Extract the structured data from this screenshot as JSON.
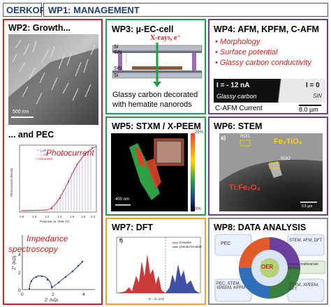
{
  "header": {
    "org": "OERKOP",
    "wp1": "WP1: MANAGEMENT"
  },
  "wp2": {
    "title": "WP2: Growth...",
    "scale_bar": "500 nm",
    "pec_title": "... and PEC",
    "photocurrent_label": "Photocurrent",
    "photocurrent_plot": {
      "xlabel": "Potential vs. RHE (V)",
      "ylabel": "Photocurrent density (mA/cm²)",
      "x_ticks": [
        "0.8",
        "1.0",
        "1.2",
        "1.4",
        "1.6",
        "1.8",
        "2.0"
      ],
      "legend": [
        "j_ph",
        "j_dark",
        "calculated fit"
      ]
    },
    "impedance_label_1": "Impedance",
    "impedance_label_2": "spectroscopy",
    "impedance_plot": {
      "xlabel": "Z' (kΩ)",
      "ylabel": "Z'' (kΩ)",
      "x_ticks": [
        "0",
        "2",
        "4"
      ],
      "y_ticks": [
        "0",
        "2",
        "4"
      ]
    }
  },
  "wp3": {
    "title": "WP3: µ-EC-cell",
    "xray_label": "X-rays, e⁻",
    "layer_si_top": "Si",
    "layer_sin_top": "SiN",
    "layer_sin_bottom": "SiN",
    "layer_si_bottom": "Si",
    "caption_1": "Glassy carbon decorated",
    "caption_2": "with hematite nanorods"
  },
  "wp4": {
    "title": "WP4: AFM, KPFM, C-AFM",
    "bullets": [
      "Morphology",
      "Surface potential",
      "Glassy carbon conductivity"
    ],
    "current_left": "I = - 12 nA",
    "current_right": "I = 0",
    "glassy_label": "Glassy carbon",
    "sin_label": "SiN",
    "caption": "C-AFM Current",
    "scale": "8.0 µm"
  },
  "wp5": {
    "title": "WP5: STXM / X-PEEM",
    "colorbar_top": "25%",
    "colorbar_bottom": "0%",
    "scale": "400 nm"
  },
  "wp6": {
    "title": "WP6: STEM",
    "panel_label": "a)",
    "roi1": "ROI1",
    "roi2": "ROI2",
    "compound_top": "Fe₂TiO₅",
    "compound_bottom": "Ti:Fe₂O₃",
    "scale": "0.5 µm"
  },
  "wp7": {
    "title": "WP7: DFT",
    "panel_label": "f)",
    "legend": [
      "brownite",
      "pseudo-brookite"
    ],
    "xlabel": "E − Eₓ (eV)"
  },
  "wp8": {
    "title": "WP8: DATA ANALYSIS",
    "center": "OER",
    "pec_label": "PEC",
    "top_right": "STEM, AFM, DFT",
    "middle_right": "scaling, multivariate analysis",
    "bottom_left": "PEC, STEM, XPEEM, KPFM",
    "bottom_right": "STXM, XPEEM, DFT"
  },
  "colors": {
    "red": "#d32026",
    "green": "#1e9f46",
    "violet": "#6a3d8f",
    "orange": "#f0a12a",
    "gray": "#8b8b8b",
    "header_blue": "#1f3e78"
  }
}
